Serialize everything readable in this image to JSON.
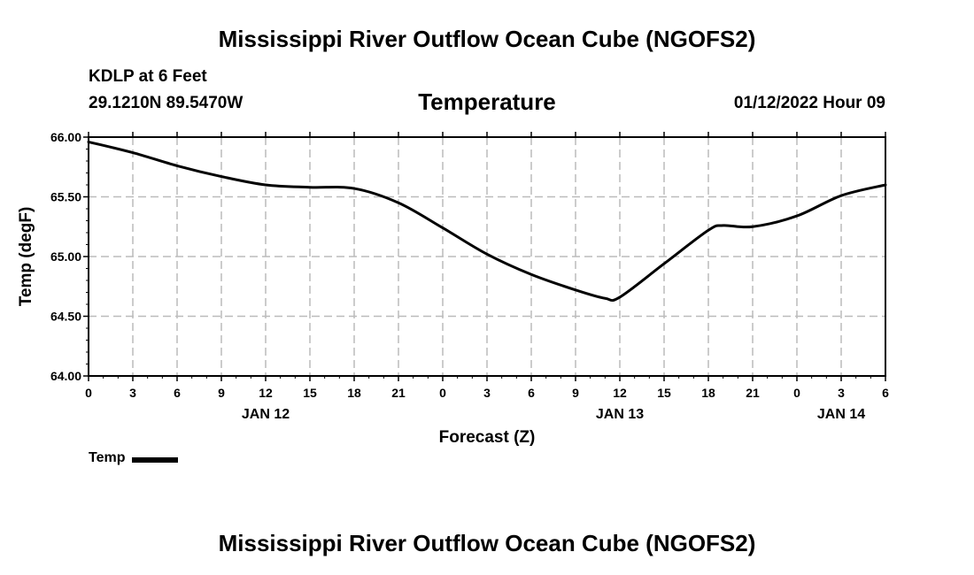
{
  "title": "Mississippi River Outflow Ocean Cube (NGOFS2)",
  "footer_title": "Mississippi River Outflow Ocean Cube (NGOFS2)",
  "station": "KDLP at 6 Feet",
  "coordinates": "29.1210N  89.5470W",
  "variable": "Temperature",
  "datetime": "01/12/2022 Hour 09",
  "chart_data": {
    "type": "line",
    "title": "Temperature",
    "xlabel": "Forecast (Z)",
    "ylabel": "Temp (degF)",
    "ylim": [
      64.0,
      66.0
    ],
    "xlim": [
      0,
      54
    ],
    "grid": true,
    "y_ticks": [
      "64.00",
      "64.50",
      "65.00",
      "65.50",
      "66.00"
    ],
    "y_tick_values": [
      64.0,
      64.5,
      65.0,
      65.5,
      66.0
    ],
    "x_tick_values": [
      0,
      3,
      6,
      9,
      12,
      15,
      18,
      21,
      24,
      27,
      30,
      33,
      36,
      39,
      42,
      45,
      48,
      51,
      54
    ],
    "x_tick_labels": [
      "0",
      "3",
      "6",
      "9",
      "12",
      "15",
      "18",
      "21",
      "0",
      "3",
      "6",
      "9",
      "12",
      "15",
      "18",
      "21",
      "0",
      "3",
      "6"
    ],
    "date_labels": [
      {
        "label": "JAN 12",
        "x": 12
      },
      {
        "label": "JAN 13",
        "x": 36
      },
      {
        "label": "JAN 14",
        "x": 51
      }
    ],
    "legend": {
      "label": "Temp",
      "placement": "bottom-left"
    },
    "series": [
      {
        "name": "Temp",
        "x": [
          0,
          3,
          6,
          9,
          12,
          15,
          18,
          21,
          24,
          27,
          30,
          33,
          35,
          36,
          39,
          42,
          43,
          45,
          48,
          51,
          54
        ],
        "values": [
          65.96,
          65.87,
          65.76,
          65.67,
          65.6,
          65.58,
          65.57,
          65.45,
          65.24,
          65.02,
          64.85,
          64.72,
          64.65,
          64.66,
          64.94,
          65.22,
          65.26,
          65.25,
          65.34,
          65.51,
          65.6
        ]
      }
    ]
  }
}
